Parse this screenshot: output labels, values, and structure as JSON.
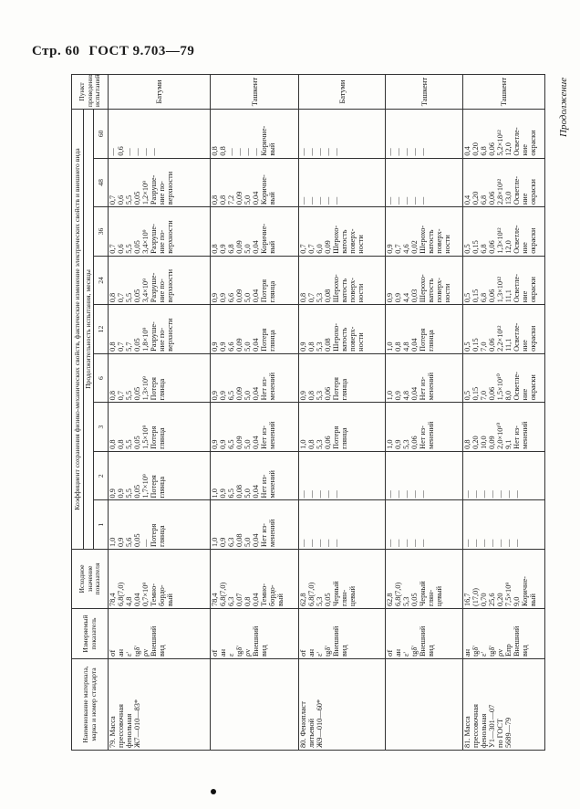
{
  "header": {
    "page": "Стр. 60",
    "standard": "ГОСТ 9.703—79",
    "continuation": "Продолжение"
  },
  "table": {
    "col_name": "Наименование материала, марка и номер стандарта",
    "col_param": "Измеряемый показатель",
    "col_initial": "Исходное значение показателя",
    "col_group": "Коэффициент сохранения физико-механических свойств, фактические изменение электрических свойств и внешнего вида",
    "col_duration": "Продолжительность испытания, месяцы",
    "col_site": "Пункт проведения испытаний",
    "months": [
      "1",
      "2",
      "3",
      "6",
      "12",
      "24",
      "36",
      "48",
      "60"
    ],
    "rows": [
      {
        "name": [
          "79. Масса",
          "прессовочная",
          "фенольная",
          "Ж7—010—83*"
        ],
        "params": [
          "σf",
          "aн",
          "ε'",
          "tgδ'",
          "ρv",
          "Внешний",
          "вид"
        ],
        "initial": [
          "78,4",
          "6,8(7,0)",
          "4,8",
          "0,04",
          "0,7×10⁹",
          "Темно-",
          "бордо-",
          "вый"
        ],
        "cells": [
          [
            "1,0",
            "0,9",
            "5,6",
            "0,05",
            "—",
            "Потеря",
            "глянца"
          ],
          [
            "0,9",
            "0,9",
            "5,5",
            "0,05",
            "1,7×10⁹",
            "Потеря",
            "глянца"
          ],
          [
            "0,8",
            "0,8",
            "5,5",
            "0,05",
            "1,5×10⁹",
            "Потеря",
            "глянца"
          ],
          [
            "0,8",
            "0,7",
            "5,5",
            "0,05",
            "1,3×10⁹",
            "Потеря",
            "глянца"
          ],
          [
            "0,8",
            "0,7",
            "5,7",
            "0,05",
            "1,8×10⁹",
            "Разруше-",
            "ние по-",
            "верхности"
          ],
          [
            "0,8",
            "0,7",
            "5,5",
            "0,05",
            "3,4×10⁹",
            "Разруше-",
            "ние по-",
            "верхности"
          ],
          [
            "0,7",
            "0,6",
            "5,5",
            "0,05",
            "3,4×10⁹",
            "Разруше-",
            "ние по-",
            "верхности"
          ],
          [
            "0,7",
            "0,6",
            "5,5",
            "0,05",
            "1,2×10⁹",
            "Разруше-",
            "ние по-",
            "верхности"
          ],
          [
            "—",
            "0,6",
            "—",
            "—",
            "—",
            "—"
          ]
        ],
        "site": "Батуми"
      },
      {
        "name": [],
        "params": [
          "σf",
          "aн",
          "ε",
          "tgδ'",
          "ρv",
          "Внешний",
          "вид"
        ],
        "initial": [
          "78,4",
          "6,8(7,0)",
          "6,3",
          "0,07",
          "0,8",
          "0,04",
          "Темно-",
          "бордо-",
          "вый"
        ],
        "cells": [
          [
            "1,0",
            "0,9",
            "6,3",
            "0,08",
            "5,0",
            "0,04",
            "Нет из-",
            "менений"
          ],
          [
            "1,0",
            "0,9",
            "6,5",
            "0,08",
            "5,0",
            "0,04",
            "Нет из-",
            "менений"
          ],
          [
            "0,9",
            "0,9",
            "6,5",
            "0,09",
            "5,0",
            "0,04",
            "Нет из-",
            "менений"
          ],
          [
            "0,9",
            "0,9",
            "6,5",
            "0,09",
            "5,0",
            "0,04",
            "Нет из-",
            "менений"
          ],
          [
            "0,9",
            "0,9",
            "6,6",
            "0,09",
            "5,0",
            "0,04",
            "Потеря",
            "глянца"
          ],
          [
            "0,9",
            "0,9",
            "6,6",
            "0,09",
            "5,0",
            "0,04",
            "Потеря",
            "глянца"
          ],
          [
            "0,8",
            "0,9",
            "6,8",
            "0,09",
            "5,0",
            "0,04",
            "Коричне-",
            "вый"
          ],
          [
            "0,8",
            "0,8",
            "7,2",
            "0,09",
            "5,0",
            "0,04",
            "Коричне-",
            "вый"
          ],
          [
            "0,8",
            "0,8",
            "—",
            "—",
            "—",
            "—",
            "Коричне-",
            "вый"
          ]
        ],
        "site": "Ташкент"
      },
      {
        "name": [
          "80. Фенопласт",
          "литьевой",
          "Ж9—010—60*"
        ],
        "params": [
          "σf",
          "aн",
          "ε'",
          "tgδ'",
          "Внешний",
          "вид"
        ],
        "initial": [
          "62,8",
          "6,8(7,0)",
          "5,3",
          "0,05",
          "Черный",
          "глян-",
          "цевый"
        ],
        "cells": [
          [
            "—",
            "—",
            "—",
            "—",
            "—"
          ],
          [
            "—",
            "—",
            "—",
            "—",
            "—"
          ],
          [
            "1,0",
            "0,8",
            "5,3",
            "0,06",
            "Потеря",
            "глянца"
          ],
          [
            "0,9",
            "0,8",
            "5,3",
            "0,06",
            "Потеря",
            "глянца"
          ],
          [
            "0,9",
            "0,8",
            "5,3",
            "0,08",
            "Шерохо-",
            "ватость",
            "поверх-",
            "ности"
          ],
          [
            "0,8",
            "0,7",
            "5,3",
            "0,08",
            "Шерохо-",
            "ватость",
            "поверх-",
            "ности"
          ],
          [
            "0,7",
            "0,7",
            "6,0",
            "0,09",
            "Шерохо-",
            "ватость",
            "поверх-",
            "ности"
          ],
          [
            "—",
            "—",
            "—",
            "—",
            "—"
          ],
          [
            "—",
            "—",
            "—",
            "—",
            "—"
          ]
        ],
        "site": "Батуми"
      },
      {
        "name": [],
        "params": [
          "σf",
          "aн",
          "ε'",
          "tgδ'",
          "Внешний",
          "вид"
        ],
        "initial": [
          "62,8",
          "6,8(7,0)",
          "5,3",
          "0,05",
          "Черный",
          "глян-",
          "цевый"
        ],
        "cells": [
          [
            "—",
            "—",
            "—",
            "—",
            "—"
          ],
          [
            "—",
            "—",
            "—",
            "—",
            "—"
          ],
          [
            "1,0",
            "0,9",
            "5,3",
            "0,06",
            "Нет из-",
            "менений"
          ],
          [
            "1,0",
            "0,9",
            "4,8",
            "0,04",
            "Нет из-",
            "менений"
          ],
          [
            "1,0",
            "0,8",
            "4,8",
            "0,04",
            "Потеря",
            "глянца"
          ],
          [
            "0,9",
            "0,9",
            "4,4",
            "0,03",
            "Шерохо-",
            "ватость",
            "поверх-",
            "ности"
          ],
          [
            "0,9",
            "0,7",
            "4,6",
            "0,02",
            "Шерохо-",
            "ватость",
            "поверх-",
            "ности"
          ],
          [
            "—",
            "—",
            "—",
            "—",
            "—"
          ],
          [
            "—",
            "—",
            "—",
            "—",
            "—"
          ]
        ],
        "site": "Ташкент"
      },
      {
        "name": [
          "81. Масса",
          "прессовочная",
          "фенольная",
          "У1—301—07",
          "по ГОСТ",
          "5689—79"
        ],
        "params": [
          "aн",
          "tgδ'",
          "ε'",
          "tgδ'",
          "ρv",
          "Eпр",
          "Внешний",
          "вид"
        ],
        "initial": [
          "16,7",
          "(17,0)",
          "0,70",
          "25,6",
          "0,20",
          "7,5×10⁹",
          "9,0",
          "Коричне-",
          "вый"
        ],
        "cells": [
          [
            "—",
            "—",
            "—",
            "—",
            "—",
            "—",
            "—"
          ],
          [
            "—",
            "—",
            "—",
            "—",
            "—",
            "—",
            "—"
          ],
          [
            "0,8",
            "0,20",
            "10,0",
            "0,09",
            "2,0×10¹⁰",
            "9,1",
            "Нет из-",
            "менений"
          ],
          [
            "0,5",
            "0,15",
            "7,0",
            "0,06",
            "1,5×10¹⁰",
            "8,0",
            "Осветле-",
            "ние",
            "окраски"
          ],
          [
            "0,5",
            "0,15",
            "7,0",
            "0,06",
            "2,2×10¹²",
            "11,1",
            "Осветле-",
            "ние",
            "окраски"
          ],
          [
            "0,5",
            "0,15",
            "6,8",
            "0,06",
            "1,3×10¹²",
            "11,1",
            "Осветле-",
            "ние",
            "окраски"
          ],
          [
            "0,5",
            "0,15",
            "6,8",
            "0,06",
            "1,3×10¹²",
            "12,0",
            "Осветле-",
            "ние",
            "окраски"
          ],
          [
            "0,4",
            "0,20",
            "6,8",
            "0,06",
            "2,8×10¹²",
            "13,0",
            "Осветле-",
            "ние",
            "окраски"
          ],
          [
            "0,4",
            "0,20",
            "6,8",
            "0,06",
            "5,2×10¹²",
            "12,0",
            "Осветле-",
            "ние",
            "окраски"
          ]
        ],
        "site": "Ташкент"
      }
    ]
  }
}
